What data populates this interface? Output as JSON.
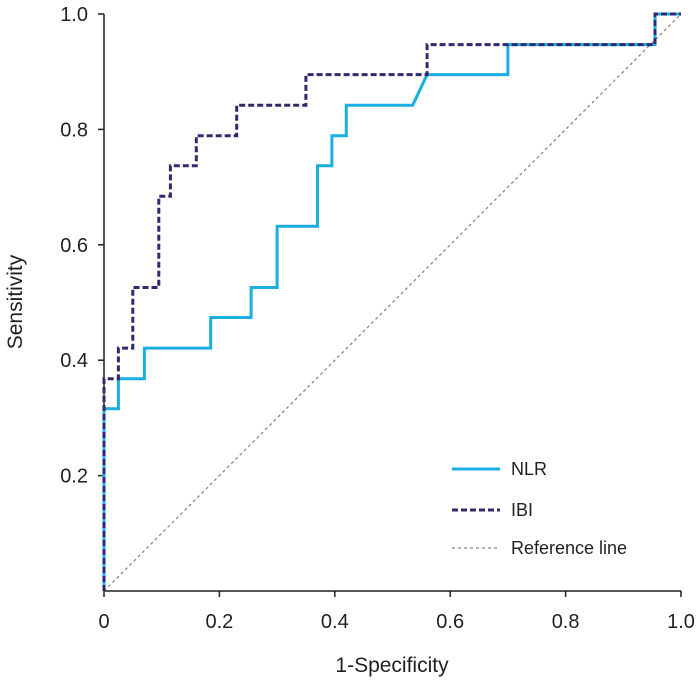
{
  "chart_data": {
    "type": "line",
    "title": "",
    "xlabel": "1-Specificity",
    "ylabel": "Sensitivity",
    "xlim": [
      0,
      1.0
    ],
    "ylim": [
      0,
      1.0
    ],
    "x_ticks": [
      0,
      0.2,
      0.4,
      0.6,
      0.8,
      1.0
    ],
    "x_tick_labels": [
      "0",
      "0.2",
      "0.4",
      "0.6",
      "0.8",
      "1.0"
    ],
    "y_ticks": [
      0.2,
      0.4,
      0.6,
      0.8,
      1.0
    ],
    "y_tick_labels": [
      "0.2",
      "0.4",
      "0.6",
      "0.8",
      "1.0"
    ],
    "grid": false,
    "legend_position": "bottom-right",
    "series": [
      {
        "name": "NLR",
        "color": "#1aaee3",
        "style": "solid",
        "x": [
          0,
          0,
          0.025,
          0.025,
          0.07,
          0.07,
          0.185,
          0.185,
          0.255,
          0.255,
          0.3,
          0.3,
          0.37,
          0.37,
          0.395,
          0.395,
          0.42,
          0.42,
          0.535,
          0.56,
          0.7,
          0.7,
          0.955,
          0.955,
          1.0
        ],
        "y": [
          0,
          0.316,
          0.316,
          0.368,
          0.368,
          0.421,
          0.421,
          0.474,
          0.474,
          0.526,
          0.526,
          0.632,
          0.632,
          0.737,
          0.737,
          0.789,
          0.789,
          0.842,
          0.842,
          0.895,
          0.895,
          0.947,
          0.947,
          1.0,
          1.0
        ]
      },
      {
        "name": "IBI",
        "color": "#2e2a6e",
        "style": "dashed",
        "x": [
          0,
          0,
          0.025,
          0.025,
          0.05,
          0.05,
          0.095,
          0.095,
          0.115,
          0.115,
          0.16,
          0.16,
          0.23,
          0.23,
          0.35,
          0.35,
          0.56,
          0.56,
          0.955,
          0.955,
          1.0
        ],
        "y": [
          0,
          0.368,
          0.368,
          0.421,
          0.421,
          0.526,
          0.526,
          0.684,
          0.684,
          0.737,
          0.737,
          0.789,
          0.789,
          0.842,
          0.842,
          0.895,
          0.895,
          0.947,
          0.947,
          1.0,
          1.0
        ]
      },
      {
        "name": "Reference line",
        "color": "#808080",
        "style": "dotted",
        "x": [
          0,
          1.0
        ],
        "y": [
          0,
          1.0
        ]
      }
    ]
  }
}
